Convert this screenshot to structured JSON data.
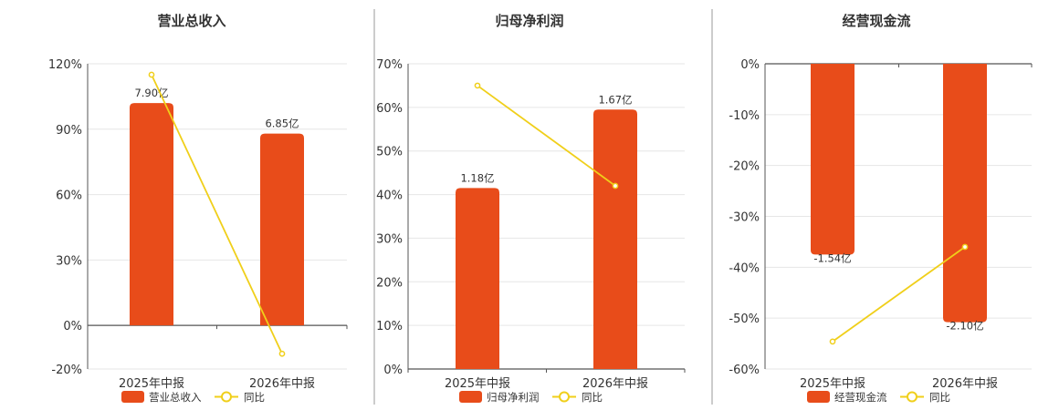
{
  "colors": {
    "bar": "#e84c1a",
    "line": "#f0cf1a",
    "grid": "#e6e6e6",
    "axis": "#555555",
    "divider": "#999999"
  },
  "chart_data": [
    {
      "type": "bar",
      "title": "营业总收入",
      "categories": [
        "2025年中报",
        "2026年中报"
      ],
      "y_ticks": [
        "120%",
        "90%",
        "60%",
        "30%",
        "0%",
        "-20%"
      ],
      "ylim": [
        -20,
        120
      ],
      "series": [
        {
          "name": "营业总收入",
          "kind": "bar",
          "values": [
            102,
            88
          ],
          "labels": [
            "7.90亿",
            "6.85亿"
          ]
        },
        {
          "name": "同比",
          "kind": "line",
          "values": [
            115,
            -13
          ]
        }
      ],
      "legend": "bottom"
    },
    {
      "type": "bar",
      "title": "归母净利润",
      "categories": [
        "2025年中报",
        "2026年中报"
      ],
      "y_ticks": [
        "70%",
        "60%",
        "50%",
        "40%",
        "30%",
        "20%",
        "10%",
        "0%"
      ],
      "ylim": [
        0,
        70
      ],
      "series": [
        {
          "name": "归母净利润",
          "kind": "bar",
          "values": [
            41.5,
            59.5
          ],
          "labels": [
            "1.18亿",
            "1.67亿"
          ]
        },
        {
          "name": "同比",
          "kind": "line",
          "values": [
            65,
            42
          ]
        }
      ],
      "legend": "bottom"
    },
    {
      "type": "bar",
      "title": "经营现金流",
      "categories": [
        "2025年中报",
        "2026年中报"
      ],
      "y_ticks": [
        "0%",
        "-10%",
        "-20%",
        "-30%",
        "-40%",
        "-50%",
        "-60%"
      ],
      "ylim": [
        -60,
        0
      ],
      "series": [
        {
          "name": "经营现金流",
          "kind": "bar",
          "values": [
            -37.5,
            -50.8
          ],
          "labels": [
            "-1.54亿",
            "-2.10亿"
          ]
        },
        {
          "name": "同比",
          "kind": "line",
          "values": [
            -54.6,
            -36
          ]
        }
      ],
      "legend": "bottom"
    }
  ]
}
